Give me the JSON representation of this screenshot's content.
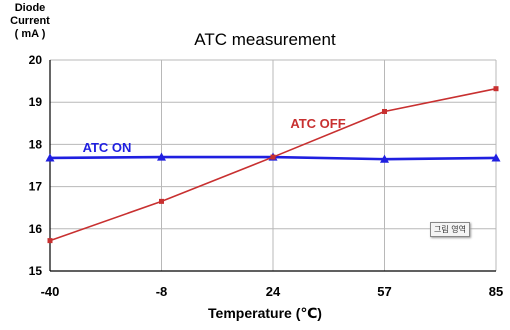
{
  "chart_data": {
    "type": "line",
    "title": "ATC measurement",
    "xlabel": "Temperature (℃)",
    "ylabel_lines": [
      "Diode",
      "Current",
      "( mA )"
    ],
    "categories": [
      "-40",
      "-8",
      "24",
      "57",
      "85"
    ],
    "ylim": [
      15,
      20
    ],
    "yticks": [
      "15",
      "16",
      "17",
      "18",
      "19",
      "20"
    ],
    "grid": true,
    "series": [
      {
        "name": "ATC ON",
        "color": "#1f1fe0",
        "marker": "triangle",
        "values": [
          17.68,
          17.7,
          17.7,
          17.65,
          17.68
        ]
      },
      {
        "name": "ATC OFF",
        "color": "#c83030",
        "marker": "square",
        "values": [
          15.72,
          16.65,
          17.7,
          18.78,
          19.32
        ]
      }
    ],
    "tag_label": "그림 영역"
  }
}
